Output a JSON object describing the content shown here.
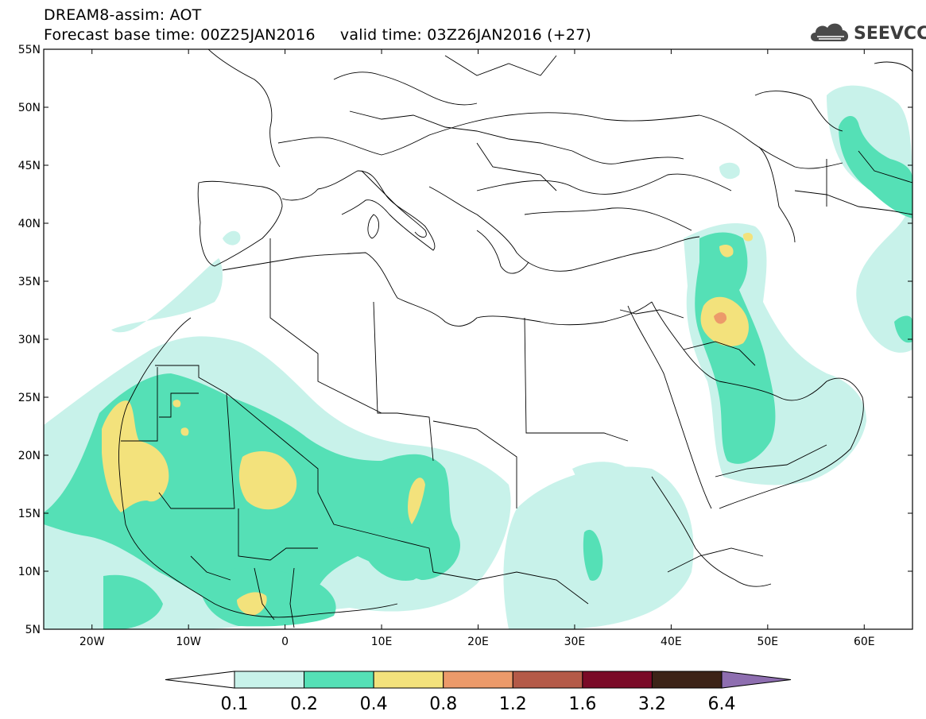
{
  "header": {
    "title": "DREAM8-assim: AOT",
    "subtitle": "Forecast base time: 00Z25JAN2016     valid time: 03Z26JAN2016 (+27)",
    "logo_text": "SEEVCCC"
  },
  "map": {
    "lat_labels": [
      "55N",
      "50N",
      "45N",
      "40N",
      "35N",
      "30N",
      "25N",
      "20N",
      "15N",
      "10N",
      "5N"
    ],
    "lon_labels": [
      "20W",
      "10W",
      "0",
      "10E",
      "20E",
      "30E",
      "40E",
      "50E",
      "60E"
    ],
    "extent": {
      "lon_min": -25,
      "lon_max": 65,
      "lat_min": 5,
      "lat_max": 55
    }
  },
  "colorbar": {
    "labels": [
      "0.1",
      "0.2",
      "0.4",
      "0.8",
      "1.2",
      "1.6",
      "3.2",
      "6.4"
    ],
    "colors": [
      "#c8f2ea",
      "#55e0b6",
      "#f3e27c",
      "#ec9a6a",
      "#b45a48",
      "#7a0a27",
      "#3c2317",
      "#8e6eb0"
    ]
  },
  "field_colors": {
    "level1": "#c8f2ea",
    "level2": "#55e0b6",
    "level3": "#f3e27c",
    "level4": "#ec9a6a"
  }
}
